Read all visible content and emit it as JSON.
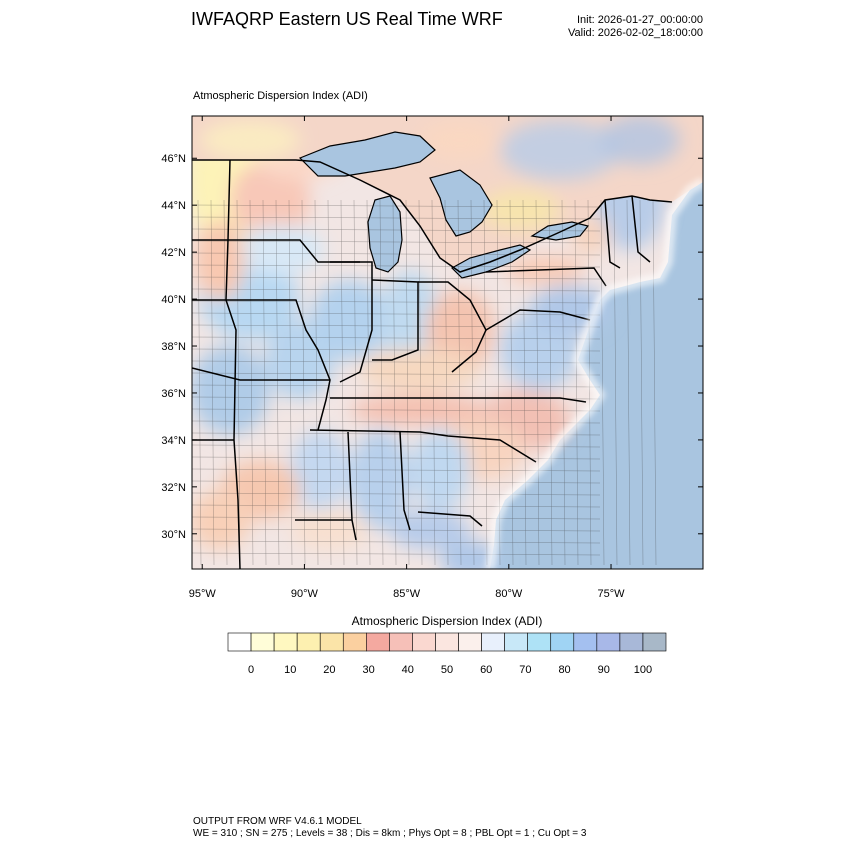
{
  "header": {
    "title": "IWFAQRP Eastern US Real Time WRF",
    "init": "Init: 2026-01-27_00:00:00",
    "valid": "Valid: 2026-02-02_18:00:00"
  },
  "plot": {
    "title": "Atmospheric Dispersion Index   (ADI)",
    "lat_labels": [
      "46°N",
      "44°N",
      "42°N",
      "40°N",
      "38°N",
      "36°N",
      "34°N",
      "32°N",
      "30°N"
    ],
    "lat_values": [
      46,
      44,
      42,
      40,
      38,
      36,
      34,
      32,
      30
    ],
    "lon_labels": [
      "95°W",
      "90°W",
      "85°W",
      "80°W",
      "75°W"
    ],
    "lon_values": [
      -95,
      -90,
      -85,
      -80,
      -75
    ],
    "lon_range": [
      -95.5,
      -70.5
    ],
    "lat_range": [
      28.5,
      47.8
    ],
    "colors": {
      "ocean": "#a9c5e0",
      "lakes": "#a9c5e0",
      "canada_land": "#f4d6c8",
      "state_lines": "#000000",
      "county_lines": "#333333"
    }
  },
  "legend": {
    "title": "Atmospheric Dispersion Index  (ADI)",
    "colors": [
      "#ffffff",
      "#fffdd8",
      "#fff8c0",
      "#fdf0b0",
      "#fbe4a8",
      "#fbd0a0",
      "#f4a9a0",
      "#f6c0b8",
      "#fad8d0",
      "#fbe6e0",
      "#fbf0ec",
      "#e8f0fc",
      "#c8e8f8",
      "#aee2f6",
      "#a0d4f4",
      "#a4c0f0",
      "#a8b8e8",
      "#a8b8d8",
      "#a8b8c8"
    ],
    "tick_labels": [
      "0",
      "10",
      "20",
      "30",
      "40",
      "50",
      "60",
      "70",
      "80",
      "90",
      "100"
    ]
  },
  "footer": {
    "line1": "OUTPUT FROM WRF V4.6.1 MODEL",
    "line2": "WE = 310 ; SN = 275 ; Levels = 38 ; Dis = 8km ; Phys Opt = 8 ; PBL Opt = 1 ; Cu Opt = 3"
  }
}
